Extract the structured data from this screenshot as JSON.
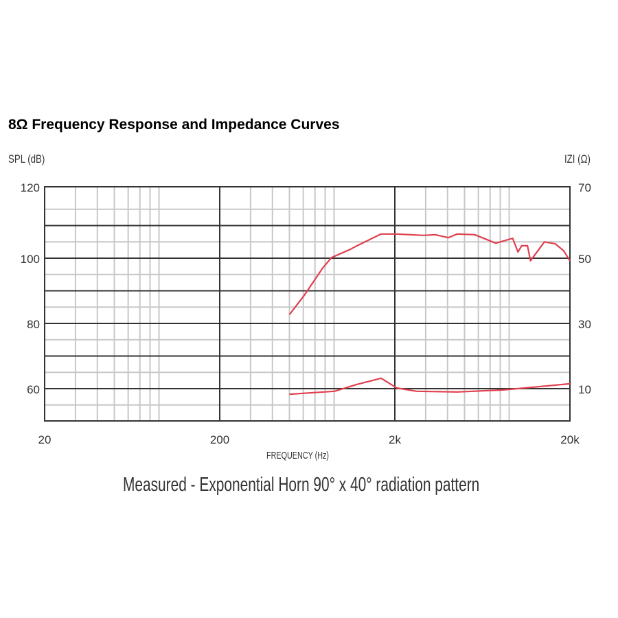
{
  "chart_data": {
    "type": "line",
    "title": "8Ω Frequency Response and Impedance Curves",
    "xlabel": "FREQUENCY (Hz)",
    "ylabel": "SPL (dB)",
    "y2label": "IZI (Ω)",
    "caption": "Measured - Exponential Horn 90° x 40° radiation pattern",
    "xscale": "log",
    "xlim": [
      20,
      20000
    ],
    "ylim": [
      50,
      120
    ],
    "y2lim": [
      0,
      70
    ],
    "grid": true,
    "xticks": [
      {
        "value": 20,
        "label": "20"
      },
      {
        "value": 200,
        "label": "200"
      },
      {
        "value": 2000,
        "label": "2k"
      },
      {
        "value": 20000,
        "label": "20k"
      }
    ],
    "yticks": [
      {
        "value": 120,
        "label": "120"
      },
      {
        "value": 100,
        "label": "100"
      },
      {
        "value": 80,
        "label": "80"
      },
      {
        "value": 60,
        "label": "60"
      }
    ],
    "y2ticks": [
      {
        "value": 70,
        "label": "70"
      },
      {
        "value": 50,
        "label": "50"
      },
      {
        "value": 30,
        "label": "30"
      },
      {
        "value": 10,
        "label": "10"
      }
    ],
    "series": [
      {
        "axis": "left",
        "color": "#e0404e",
        "x": [
          500,
          607,
          775,
          870,
          1112,
          1217,
          1670,
          2050,
          2920,
          3400,
          4040,
          4540,
          5720,
          7550,
          9420,
          10100,
          10600,
          11450,
          11900,
          14300,
          16500,
          18400,
          20000
        ],
        "y": [
          82.7,
          88.6,
          97,
          100.2,
          102.7,
          103.8,
          107.4,
          107.4,
          107,
          107.2,
          106.3,
          107.4,
          107.2,
          104.6,
          106.1,
          101.9,
          103.8,
          103.8,
          99.2,
          105,
          104.4,
          102.3,
          99.2
        ]
      },
      {
        "axis": "right",
        "color": "#e0404e",
        "x": [
          500,
          904,
          1217,
          1670,
          2050,
          2660,
          4540,
          8290,
          20000
        ],
        "y": [
          8.3,
          9.2,
          11.3,
          13.2,
          10.2,
          9.2,
          9.0,
          9.6,
          11.5
        ]
      }
    ]
  }
}
